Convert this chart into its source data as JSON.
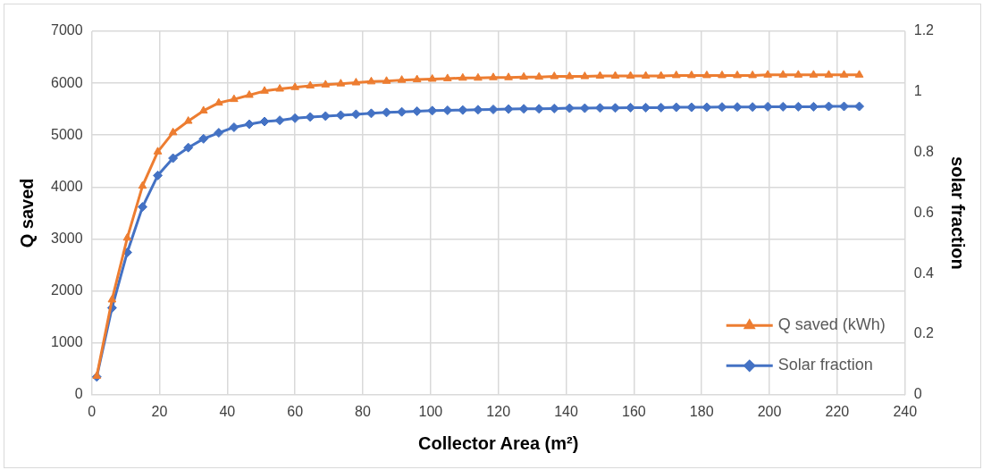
{
  "chart_data": {
    "type": "line",
    "xlabel": "Collector Area (m²)",
    "ylabel": "Q saved",
    "y2label": "solar fraction",
    "x": [
      1.5,
      6,
      10.5,
      15,
      19.5,
      24,
      28.5,
      33,
      37.5,
      42,
      46.5,
      51,
      55.5,
      60,
      64.5,
      69,
      73.5,
      78,
      82.5,
      87,
      91.5,
      96,
      100.5,
      105,
      109.5,
      114,
      118.5,
      123,
      127.5,
      132,
      136.5,
      141,
      145.5,
      150,
      154.5,
      159,
      163.5,
      168,
      172.5,
      177,
      181.5,
      186,
      190.5,
      195,
      199.5,
      204,
      208.5,
      213,
      217.5,
      222,
      226.5
    ],
    "series": [
      {
        "name": "Q saved (kWh)",
        "color": "#ed7d31",
        "marker": "triangle",
        "values": [
          360,
          1830,
          3020,
          4020,
          4680,
          5050,
          5270,
          5470,
          5620,
          5690,
          5770,
          5850,
          5890,
          5920,
          5950,
          5970,
          5990,
          6010,
          6030,
          6040,
          6060,
          6070,
          6080,
          6090,
          6100,
          6100,
          6110,
          6110,
          6120,
          6120,
          6130,
          6130,
          6130,
          6140,
          6140,
          6140,
          6140,
          6140,
          6150,
          6150,
          6150,
          6150,
          6150,
          6150,
          6160,
          6160,
          6160,
          6160,
          6160,
          6160,
          6160
        ]
      },
      {
        "name": "Solar fraction",
        "color": "#4472c4",
        "marker": "diamond",
        "axis": "y2",
        "values": [
          0.059,
          0.287,
          0.47,
          0.62,
          0.724,
          0.781,
          0.816,
          0.845,
          0.865,
          0.883,
          0.893,
          0.902,
          0.906,
          0.913,
          0.917,
          0.92,
          0.923,
          0.926,
          0.929,
          0.932,
          0.934,
          0.936,
          0.938,
          0.939,
          0.94,
          0.941,
          0.942,
          0.943,
          0.944,
          0.944,
          0.945,
          0.946,
          0.946,
          0.947,
          0.947,
          0.948,
          0.948,
          0.948,
          0.949,
          0.949,
          0.949,
          0.95,
          0.95,
          0.95,
          0.951,
          0.951,
          0.951,
          0.951,
          0.952,
          0.952,
          0.952
        ]
      }
    ],
    "xlim": [
      0,
      240
    ],
    "xticks": [
      0,
      20,
      40,
      60,
      80,
      100,
      120,
      140,
      160,
      180,
      200,
      220,
      240
    ],
    "ylim": [
      0,
      7000
    ],
    "yticks": [
      0,
      1000,
      2000,
      3000,
      4000,
      5000,
      6000,
      7000
    ],
    "y2lim": [
      0,
      1.2
    ],
    "y2ticks": [
      0,
      0.2,
      0.4,
      0.6,
      0.8,
      1,
      1.2
    ],
    "grid": true,
    "legend": "bottom right",
    "line_style": "solid"
  }
}
